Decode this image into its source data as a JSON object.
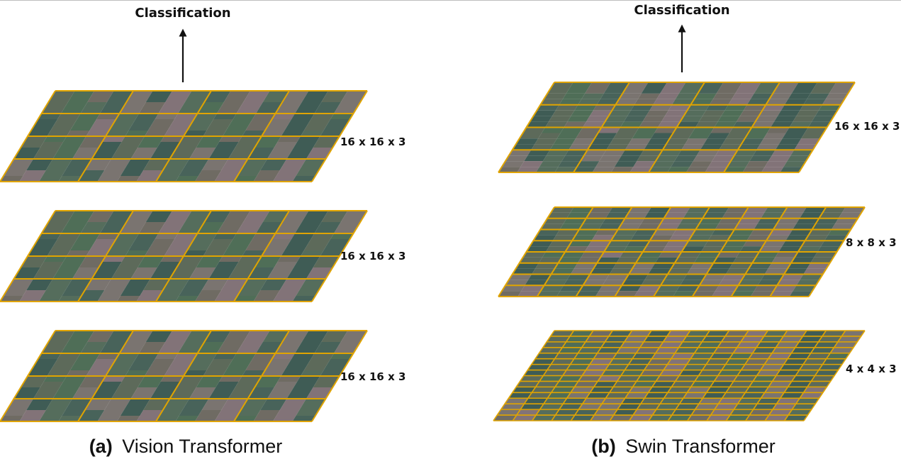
{
  "panels": [
    {
      "id": "vit",
      "caption_letter": "(a)",
      "caption_title": "Vision Transformer",
      "output_label": "Classification",
      "layers": [
        {
          "label": "16 x 16 x 3",
          "grid": 4
        },
        {
          "label": "16 x 16 x 3",
          "grid": 4
        },
        {
          "label": "16 x 16 x 3",
          "grid": 4
        }
      ]
    },
    {
      "id": "swin",
      "caption_letter": "(b)",
      "caption_title": "Swin Transformer",
      "output_label": "Classification",
      "layers": [
        {
          "label": "16 x 16 x 3",
          "grid": 4
        },
        {
          "label": "8 x 8 x 3",
          "grid": 8
        },
        {
          "label": "4 x 4 x 3",
          "grid": 16
        }
      ]
    }
  ],
  "colors": {
    "grid_line": "#e0a400",
    "arrow": "#111111",
    "tile_palette": [
      "#5d6a5a",
      "#4f6e57",
      "#6f6b63",
      "#827378",
      "#556d5c",
      "#48635a",
      "#7a7470",
      "#3f5c55"
    ]
  }
}
